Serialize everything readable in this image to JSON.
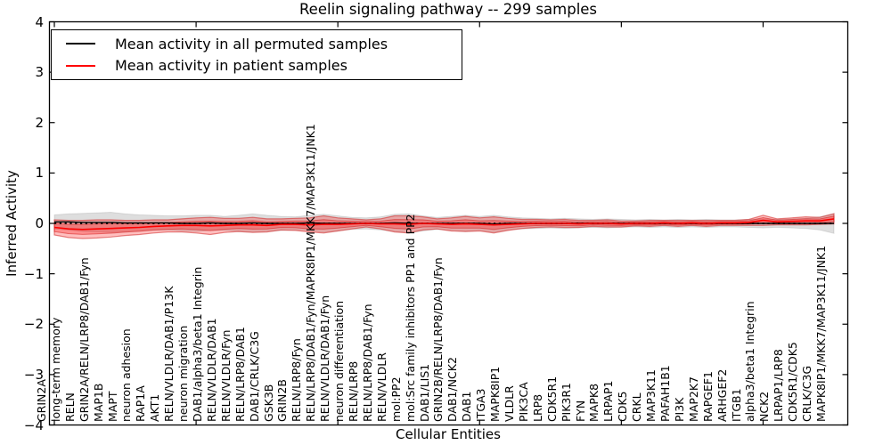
{
  "title": "Reelin signaling pathway -- 299 samples",
  "axes": {
    "ylabel": "Inferred Activity",
    "xlabel": "Cellular Entities",
    "yticks": [
      -4,
      -3,
      -2,
      -1,
      0,
      1,
      2,
      3,
      4
    ],
    "yticklabels": [
      "−4",
      "−3",
      "−2",
      "−1",
      "0",
      "1",
      "2",
      "3",
      "4"
    ],
    "xtick_indices": [
      0,
      10,
      20,
      30,
      40,
      50
    ],
    "ylim": [
      -4,
      4
    ]
  },
  "legend": {
    "items": [
      {
        "label": "Mean activity in all permuted samples",
        "color": "#000000"
      },
      {
        "label": "Mean activity in patient samples",
        "color": "#ff0000"
      }
    ]
  },
  "colors": {
    "frame": "#000000",
    "background": "#ffffff",
    "permuted_line": "#000000",
    "patient_line": "#ff0000",
    "patient_band_fill": "rgba(255,0,0,0.25)",
    "patient_band_edge": "rgba(205,20,20,0.5)",
    "permuted_band_fill": "rgba(0,0,0,0.13)",
    "permuted_band_edge": "rgba(0,0,0,0.10)",
    "zero_line": "#000000"
  },
  "chart_data": {
    "type": "line",
    "title": "Reelin signaling pathway -- 299 samples",
    "xlabel": "Cellular Entities",
    "ylabel": "Inferred Activity",
    "ylim": [
      -4,
      4
    ],
    "grid": false,
    "legend_position": "upper left",
    "zero_line": {
      "y": 0,
      "style": "dotted",
      "color": "#000000"
    },
    "categories": [
      "GRIN2A",
      "long-term memory",
      "RELN",
      "GRIN2A/RELN/LRP8/DAB1/Fyn",
      "MAP1B",
      "MAPT",
      "neuron adhesion",
      "RAP1A",
      "AKT1",
      "RELN/VLDLR/DAB1/P13K",
      "neuron migration",
      "DAB1/alpha3/beta1 Integrin",
      "RELN/VLDLR/DAB1",
      "RELN/VLDLR/Fyn",
      "RELN/LRP8/DAB1",
      "DAB1/CRLK/C3G",
      "GSK3B",
      "GRIN2B",
      "RELN/LRP8/Fyn",
      "RELN/LRP8/DAB1/Fyn/MAPK8IP1/MKK7/MAP3K11/JNK1",
      "RELN/VLDLR/DAB1/Fyn",
      "neuron differentiation",
      "RELN/LRP8",
      "RELN/LRP8/DAB1/Fyn",
      "RELN/VLDLR",
      "mol:PP2",
      "mol:Src family inhibitors PP1 and PP2",
      "DAB1/LIS1",
      "GRIN2B/RELN/LRP8/DAB1/Fyn",
      "DAB1/NCK2",
      "DAB1",
      "ITGA3",
      "MAPK8IP1",
      "VLDLR",
      "PIK3CA",
      "LRP8",
      "CDK5R1",
      "PIK3R1",
      "FYN",
      "MAPK8",
      "LRPAP1",
      "CDK5",
      "CRKL",
      "MAP3K11",
      "PAFAH1B1",
      "PI3K",
      "MAP2K7",
      "RAPGEF1",
      "ARHGEF2",
      "ITGB1",
      "alpha3/beta1 Integrin",
      "NCK2",
      "LRPAP1/LRP8",
      "CDK5R1/CDK5",
      "CRLK/C3G",
      "MAPK8IP1/MKK7/MAP3K11/JNK1"
    ],
    "series": [
      {
        "name": "Mean activity in all permuted samples",
        "color": "#000000",
        "values": [
          0.03,
          0.03,
          0.02,
          0.02,
          0.02,
          0.01,
          0.01,
          0.01,
          0.01,
          0.0,
          0.0,
          0.01,
          0.0,
          0.0,
          0.01,
          0.0,
          0.0,
          0.0,
          0.01,
          0.0,
          0.0,
          0.0,
          0.0,
          0.0,
          0.01,
          0.0,
          0.0,
          0.0,
          0.0,
          0.0,
          0.0,
          -0.01,
          0.0,
          0.0,
          0.0,
          0.0,
          0.0,
          0.0,
          0.0,
          0.0,
          0.0,
          0.0,
          0.0,
          0.0,
          0.0,
          0.0,
          0.0,
          0.0,
          0.0,
          0.0,
          0.0,
          0.0,
          0.0,
          0.0,
          0.0,
          0.0
        ],
        "std": [
          0.14,
          0.16,
          0.18,
          0.19,
          0.2,
          0.18,
          0.16,
          0.15,
          0.14,
          0.15,
          0.16,
          0.15,
          0.14,
          0.16,
          0.18,
          0.16,
          0.14,
          0.13,
          0.15,
          0.18,
          0.15,
          0.12,
          0.11,
          0.13,
          0.17,
          0.19,
          0.15,
          0.12,
          0.14,
          0.16,
          0.14,
          0.17,
          0.13,
          0.11,
          0.1,
          0.09,
          0.1,
          0.09,
          0.08,
          0.09,
          0.08,
          0.07,
          0.08,
          0.07,
          0.08,
          0.07,
          0.08,
          0.07,
          0.07,
          0.08,
          0.09,
          0.08,
          0.09,
          0.1,
          0.13,
          0.2
        ]
      },
      {
        "name": "Mean activity in patient samples",
        "color": "#ff0000",
        "values": [
          -0.08,
          -0.11,
          -0.12,
          -0.11,
          -0.1,
          -0.09,
          -0.08,
          -0.06,
          -0.05,
          -0.04,
          -0.04,
          -0.05,
          -0.04,
          -0.03,
          -0.03,
          -0.04,
          -0.02,
          -0.02,
          -0.03,
          -0.02,
          -0.02,
          -0.01,
          0.0,
          -0.01,
          -0.01,
          -0.02,
          0.0,
          -0.01,
          -0.02,
          -0.01,
          -0.02,
          -0.03,
          -0.02,
          -0.01,
          0.0,
          0.0,
          0.0,
          -0.01,
          0.0,
          0.0,
          -0.01,
          0.0,
          0.0,
          0.01,
          0.0,
          0.01,
          0.0,
          0.01,
          0.01,
          0.02,
          0.06,
          0.03,
          0.04,
          0.05,
          0.05,
          0.09
        ],
        "std": [
          0.15,
          0.17,
          0.18,
          0.18,
          0.17,
          0.15,
          0.14,
          0.13,
          0.12,
          0.13,
          0.15,
          0.17,
          0.14,
          0.13,
          0.15,
          0.13,
          0.11,
          0.12,
          0.14,
          0.17,
          0.13,
          0.1,
          0.07,
          0.1,
          0.16,
          0.17,
          0.13,
          0.1,
          0.13,
          0.15,
          0.13,
          0.16,
          0.12,
          0.09,
          0.08,
          0.07,
          0.08,
          0.07,
          0.06,
          0.07,
          0.06,
          0.05,
          0.06,
          0.05,
          0.06,
          0.05,
          0.06,
          0.05,
          0.05,
          0.06,
          0.1,
          0.06,
          0.07,
          0.08,
          0.07,
          0.1
        ]
      }
    ]
  }
}
